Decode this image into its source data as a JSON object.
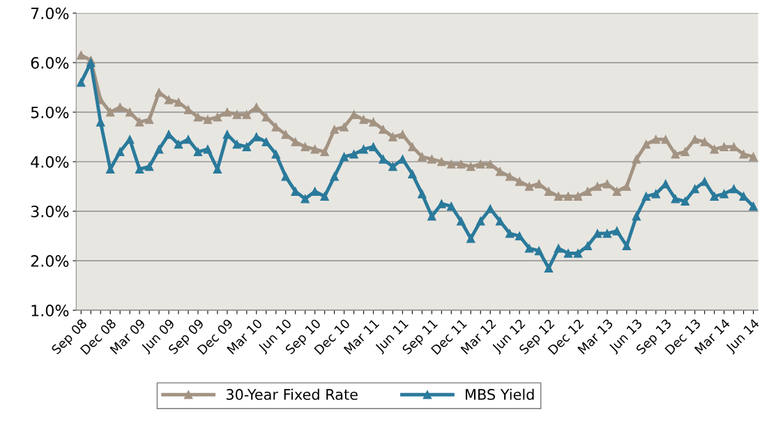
{
  "chart_data": {
    "type": "line",
    "categories": [
      "Sep 08",
      null,
      null,
      "Dec 08",
      null,
      null,
      "Mar 09",
      null,
      null,
      "Jun 09",
      null,
      null,
      "Sep 09",
      null,
      null,
      "Dec 09",
      null,
      null,
      "Mar 10",
      null,
      null,
      "Jun 10",
      null,
      null,
      "Sep 10",
      null,
      null,
      "Dec 10",
      null,
      null,
      "Mar 11",
      null,
      null,
      "Jun 11",
      null,
      null,
      "Sep 11",
      null,
      null,
      "Dec 11",
      null,
      null,
      "Mar 12",
      null,
      null,
      "Jun 12",
      null,
      null,
      "Sep 12",
      null,
      null,
      "Dec 12",
      null,
      null,
      "Mar 13",
      null,
      null,
      "Jun 13",
      null,
      null,
      "Sep 13",
      null,
      null,
      "Dec 13",
      null,
      null,
      "Mar 14",
      null,
      null,
      "Jun 14"
    ],
    "series": [
      {
        "name": "30-Year Fixed Rate",
        "color": "#a39382",
        "values": [
          6.15,
          6.05,
          5.25,
          5.0,
          5.1,
          5.0,
          4.8,
          4.85,
          5.4,
          5.25,
          5.2,
          5.05,
          4.9,
          4.85,
          4.9,
          5.0,
          4.95,
          4.95,
          5.1,
          4.9,
          4.7,
          4.55,
          4.4,
          4.3,
          4.25,
          4.2,
          4.65,
          4.7,
          4.95,
          4.85,
          4.8,
          4.65,
          4.5,
          4.55,
          4.3,
          4.1,
          4.05,
          4.0,
          3.95,
          3.95,
          3.9,
          3.95,
          3.95,
          3.8,
          3.7,
          3.6,
          3.5,
          3.55,
          3.4,
          3.3,
          3.3,
          3.3,
          3.4,
          3.5,
          3.55,
          3.4,
          3.5,
          4.05,
          4.35,
          4.45,
          4.45,
          4.15,
          4.2,
          4.45,
          4.4,
          4.25,
          4.3,
          4.3,
          4.15,
          4.1
        ]
      },
      {
        "name": "MBS Yield",
        "color": "#2a7a9b",
        "values": [
          5.6,
          6.0,
          4.8,
          3.85,
          4.2,
          4.45,
          3.85,
          3.9,
          4.25,
          4.55,
          4.35,
          4.45,
          4.2,
          4.25,
          3.85,
          4.55,
          4.35,
          4.3,
          4.5,
          4.4,
          4.15,
          3.7,
          3.4,
          3.25,
          3.4,
          3.3,
          3.7,
          4.1,
          4.15,
          4.25,
          4.3,
          4.05,
          3.9,
          4.05,
          3.75,
          3.35,
          2.9,
          3.15,
          3.1,
          2.8,
          2.45,
          2.8,
          3.05,
          2.8,
          2.55,
          2.5,
          2.25,
          2.2,
          1.85,
          2.25,
          2.15,
          2.15,
          2.3,
          2.55,
          2.55,
          2.6,
          2.3,
          2.9,
          3.3,
          3.35,
          3.55,
          3.25,
          3.2,
          3.45,
          3.6,
          3.3,
          3.35,
          3.45,
          3.3,
          3.1
        ]
      }
    ],
    "ylim": [
      1,
      7
    ],
    "yticks": [
      {
        "value": 1,
        "label": "1.0%"
      },
      {
        "value": 2,
        "label": "2.0%"
      },
      {
        "value": 3,
        "label": "3.0%"
      },
      {
        "value": 4,
        "label": "4.0%"
      },
      {
        "value": 5,
        "label": "5.0%"
      },
      {
        "value": 6,
        "label": "6.0%"
      },
      {
        "value": 7,
        "label": "7.0%"
      }
    ],
    "grid": "y",
    "legend": "bottom",
    "marker": "triangle",
    "line_style": "solid"
  }
}
